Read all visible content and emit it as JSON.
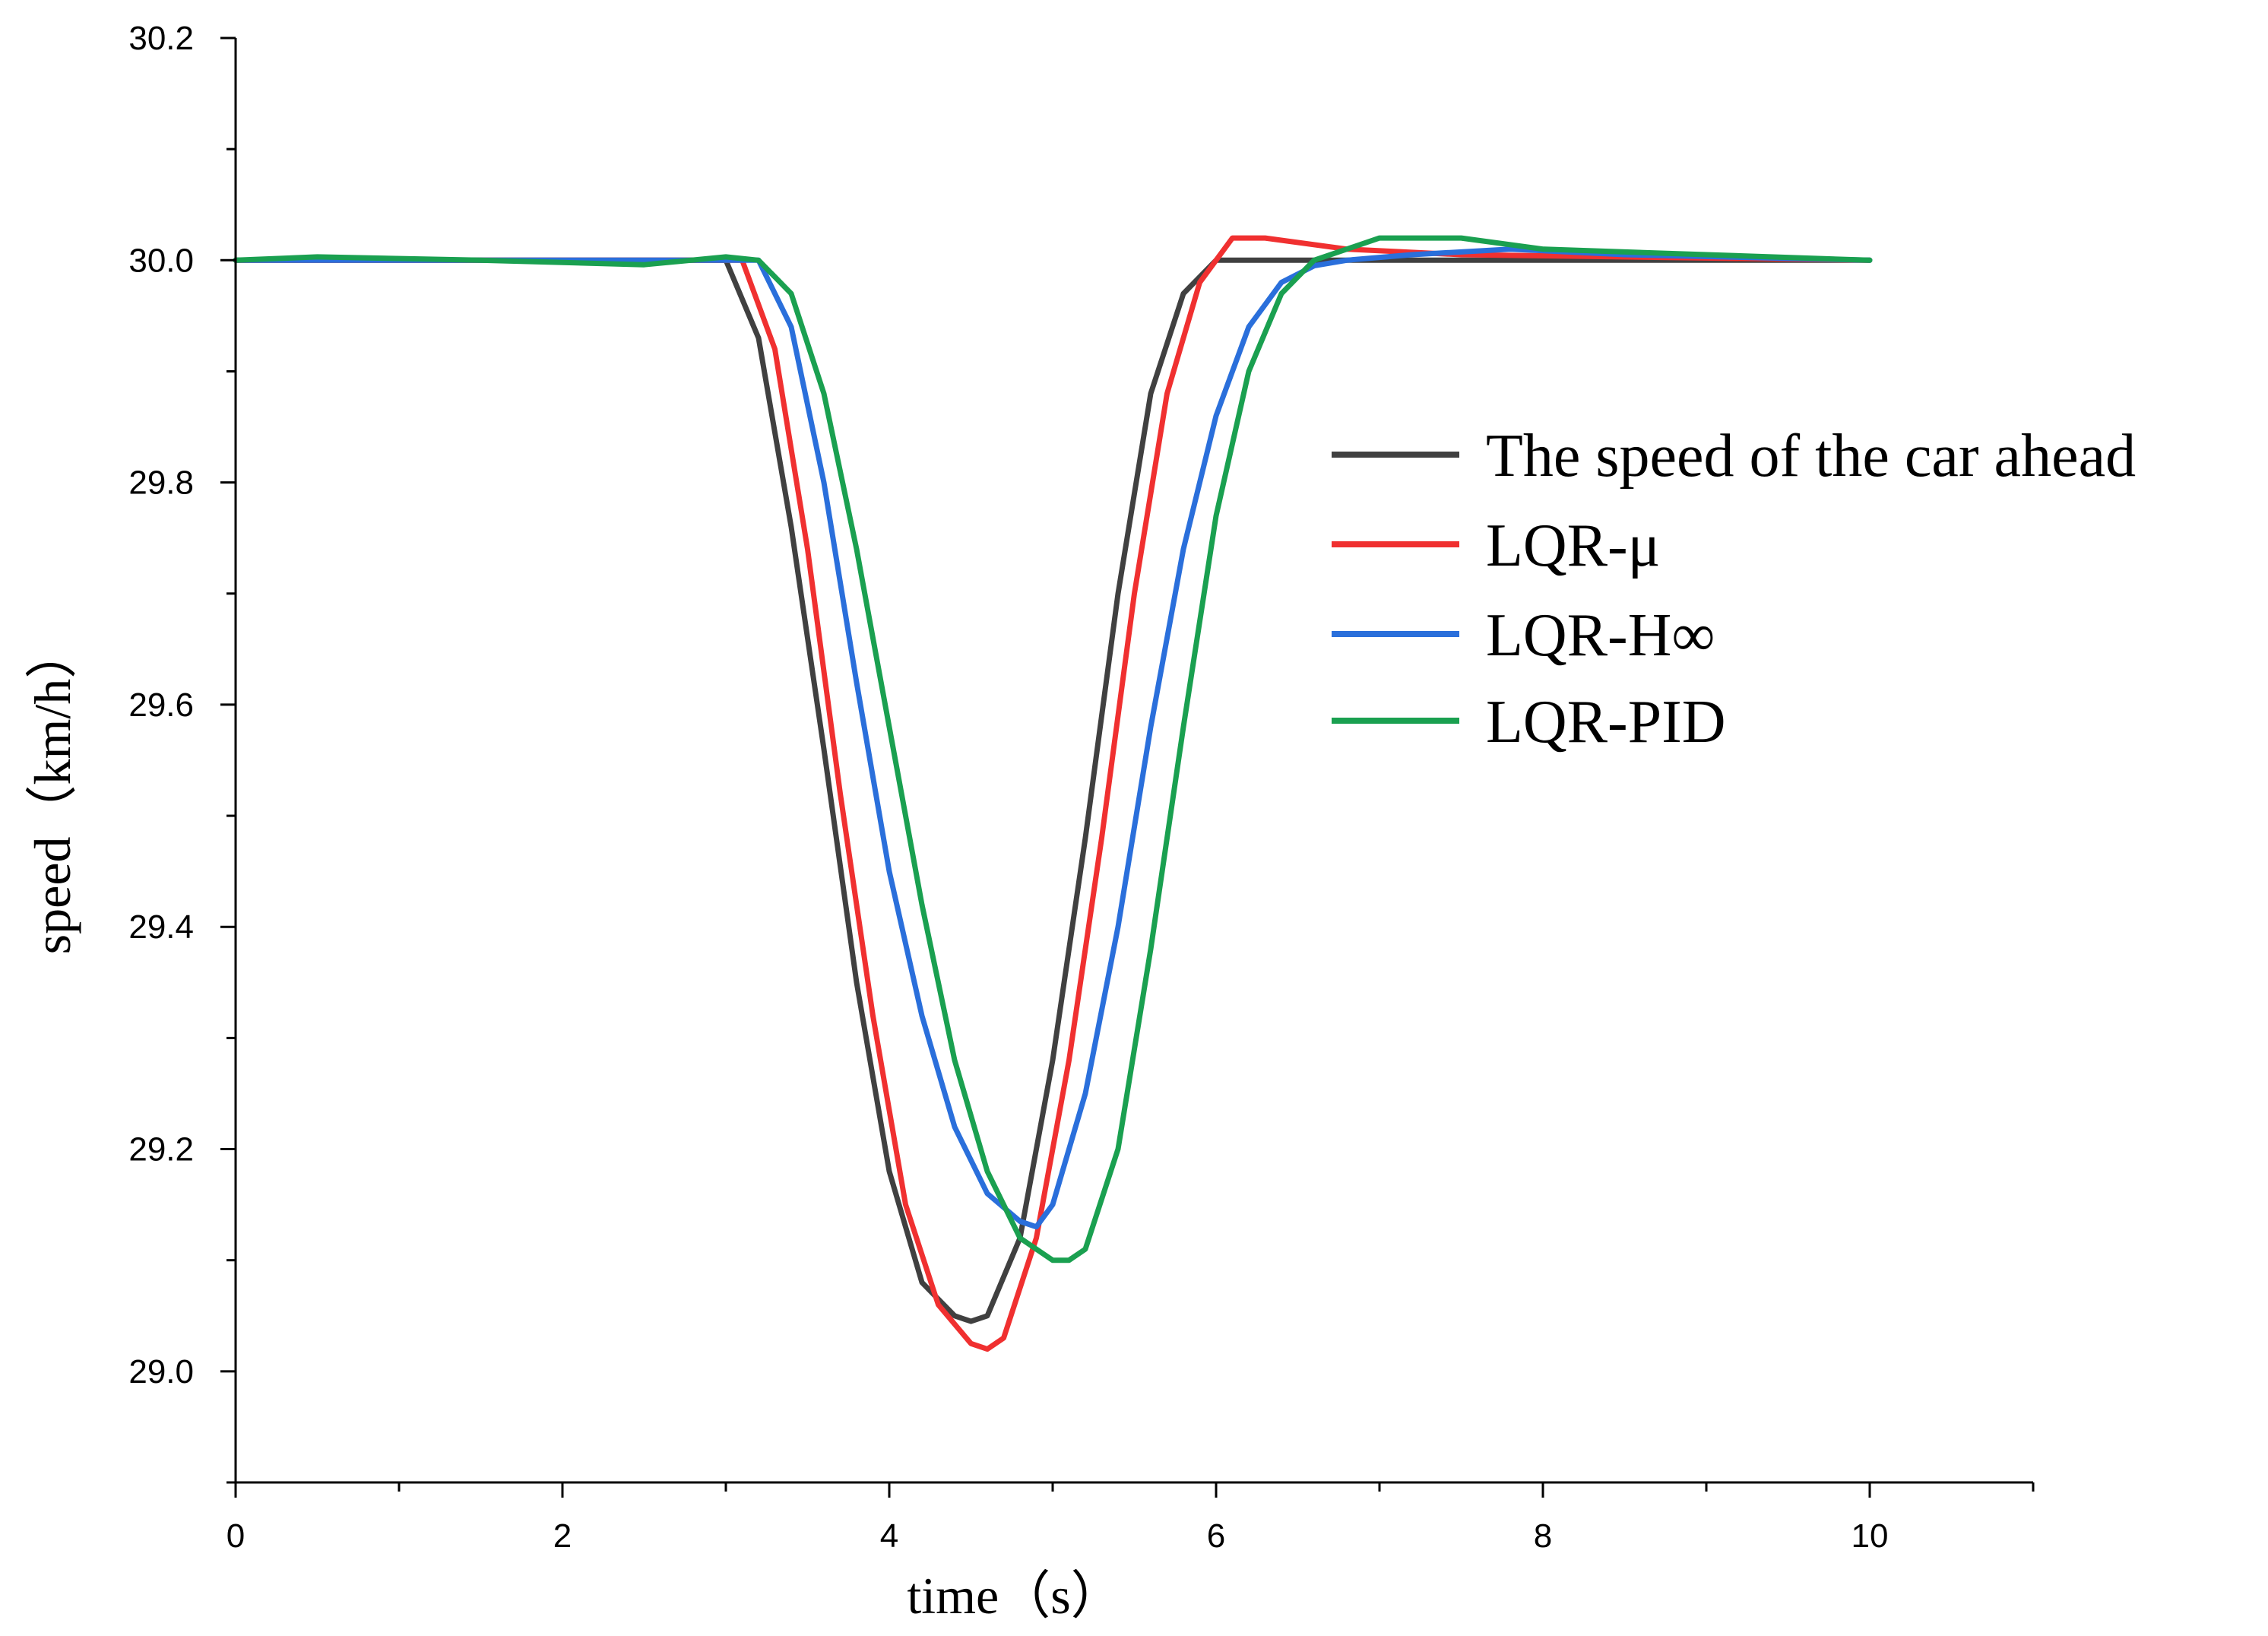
{
  "chart_data": {
    "type": "line",
    "title": "",
    "xlabel": "time（s）",
    "ylabel": "speed（km/h）",
    "xlim": [
      0,
      11
    ],
    "ylim": [
      28.9,
      30.2
    ],
    "x_ticks": [
      0,
      2,
      4,
      6,
      8,
      10
    ],
    "x_tick_labels": [
      "0",
      "2",
      "4",
      "6",
      "8",
      "10"
    ],
    "y_ticks": [
      29.0,
      29.2,
      29.4,
      29.6,
      29.8,
      30.0,
      30.2
    ],
    "y_tick_labels": [
      "29.0",
      "29.2",
      "29.4",
      "29.6",
      "29.8",
      "30.0",
      "30.2"
    ],
    "grid": false,
    "legend_position": "right",
    "series": [
      {
        "name": "The speed of the car ahead",
        "color": "#404040",
        "x": [
          0,
          3.0,
          3.2,
          3.4,
          3.6,
          3.8,
          4.0,
          4.2,
          4.4,
          4.5,
          4.6,
          4.8,
          5.0,
          5.2,
          5.4,
          5.6,
          5.8,
          6.0,
          6.2,
          8.0,
          10.0
        ],
        "y": [
          30.0,
          30.0,
          29.93,
          29.76,
          29.56,
          29.35,
          29.18,
          29.08,
          29.05,
          29.045,
          29.05,
          29.12,
          29.28,
          29.48,
          29.7,
          29.88,
          29.97,
          30.0,
          30.0,
          30.0,
          30.0
        ]
      },
      {
        "name": "LQR-μ",
        "color": "#f03030",
        "x": [
          0,
          3.1,
          3.3,
          3.5,
          3.7,
          3.9,
          4.1,
          4.3,
          4.5,
          4.6,
          4.7,
          4.9,
          5.1,
          5.3,
          5.5,
          5.7,
          5.9,
          6.1,
          6.3,
          6.8,
          7.5,
          10.0
        ],
        "y": [
          30.0,
          30.0,
          29.92,
          29.74,
          29.52,
          29.32,
          29.15,
          29.06,
          29.025,
          29.02,
          29.03,
          29.12,
          29.28,
          29.48,
          29.7,
          29.88,
          29.98,
          30.02,
          30.02,
          30.01,
          30.005,
          30.0
        ]
      },
      {
        "name": "LQR-H∞",
        "color": "#2a6fdb",
        "x": [
          0,
          3.2,
          3.4,
          3.6,
          3.8,
          4.0,
          4.2,
          4.4,
          4.6,
          4.8,
          4.9,
          5.0,
          5.2,
          5.4,
          5.6,
          5.8,
          6.0,
          6.2,
          6.4,
          6.6,
          6.8,
          7.2,
          7.8,
          8.5,
          10.0
        ],
        "y": [
          30.0,
          30.0,
          29.94,
          29.8,
          29.62,
          29.45,
          29.32,
          29.22,
          29.16,
          29.135,
          29.13,
          29.15,
          29.25,
          29.4,
          29.58,
          29.74,
          29.86,
          29.94,
          29.98,
          29.995,
          30.0,
          30.005,
          30.01,
          30.005,
          30.0
        ]
      },
      {
        "name": "LQR-PID",
        "color": "#1aa050",
        "x": [
          0,
          0.5,
          1.5,
          2.5,
          3.0,
          3.2,
          3.4,
          3.6,
          3.8,
          4.0,
          4.2,
          4.4,
          4.6,
          4.8,
          5.0,
          5.1,
          5.2,
          5.4,
          5.6,
          5.8,
          6.0,
          6.2,
          6.4,
          6.6,
          6.8,
          7.0,
          7.5,
          8.0,
          9.0,
          10.0
        ],
        "y": [
          30.0,
          30.003,
          30.0,
          29.996,
          30.003,
          30.0,
          29.97,
          29.88,
          29.74,
          29.58,
          29.42,
          29.28,
          29.18,
          29.12,
          29.1,
          29.1,
          29.11,
          29.2,
          29.38,
          29.58,
          29.77,
          29.9,
          29.97,
          30.0,
          30.01,
          30.02,
          30.02,
          30.01,
          30.005,
          30.0
        ]
      }
    ]
  }
}
